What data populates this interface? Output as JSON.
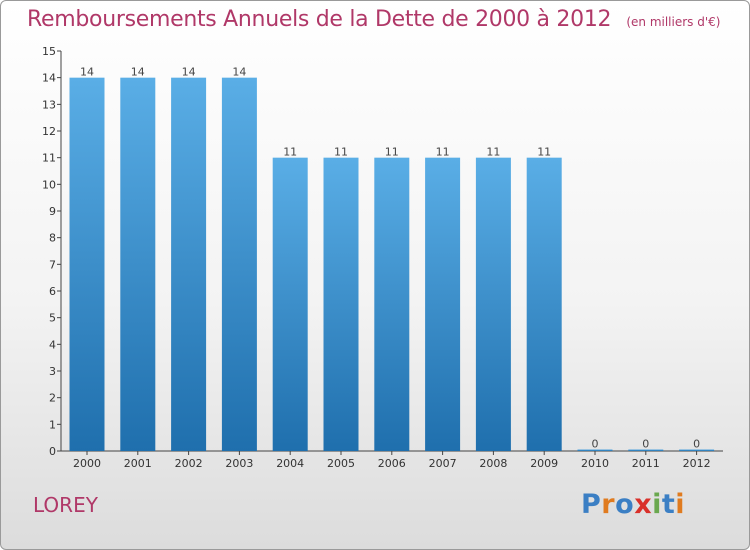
{
  "header": {
    "title": "Remboursements Annuels de la Dette de 2000 à 2012",
    "subtitle": "(en milliers d'€)"
  },
  "footer": {
    "commune": "LOREY",
    "logo": "Proxiti"
  },
  "colors": {
    "title": "#b03868",
    "bar_top": "#5aaee6",
    "bar_bottom": "#1f6fad",
    "logo_letters": [
      "#3b7fc4",
      "#e07b1f",
      "#3b7fc4",
      "#d9302a",
      "#6aa84f",
      "#3b7fc4",
      "#e07b1f"
    ]
  },
  "chart_data": {
    "type": "bar",
    "categories": [
      "2000",
      "2001",
      "2002",
      "2003",
      "2004",
      "2005",
      "2006",
      "2007",
      "2008",
      "2009",
      "2010",
      "2011",
      "2012"
    ],
    "values": [
      14,
      14,
      14,
      14,
      11,
      11,
      11,
      11,
      11,
      11,
      0,
      0,
      0
    ],
    "data_labels": [
      "14",
      "14",
      "14",
      "14",
      "11",
      "11",
      "11",
      "11",
      "11",
      "11",
      "0",
      "0",
      "0"
    ],
    "y_ticks": [
      0,
      1,
      2,
      3,
      4,
      5,
      6,
      7,
      8,
      9,
      10,
      11,
      12,
      13,
      14,
      15
    ],
    "ylim": [
      0,
      15
    ],
    "grid": false,
    "xlabel": "",
    "ylabel": ""
  }
}
